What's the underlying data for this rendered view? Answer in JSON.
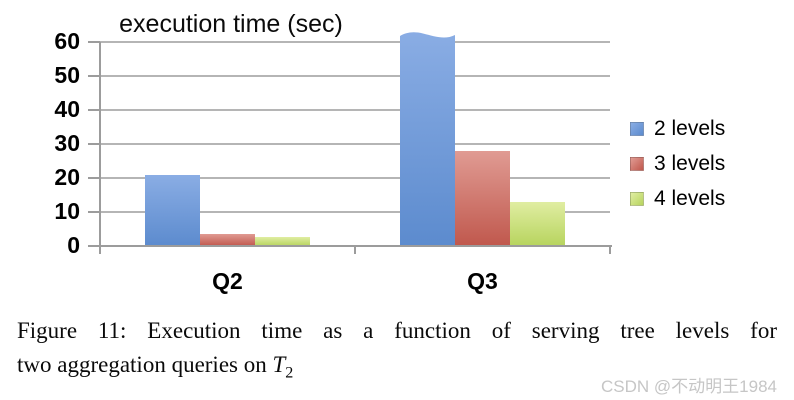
{
  "chart_data": {
    "type": "bar",
    "title": "execution time (sec)",
    "categories": [
      "Q2",
      "Q3"
    ],
    "series": [
      {
        "name": "2 levels",
        "color_top": "#8aade4",
        "color_bottom": "#5c8bce",
        "values": [
          21,
          62
        ]
      },
      {
        "name": "3 levels",
        "color_top": "#e09b93",
        "color_bottom": "#c0584d",
        "values": [
          3.5,
          28
        ]
      },
      {
        "name": "4 levels",
        "color_top": "#e0eda2",
        "color_bottom": "#b7d45e",
        "values": [
          2.5,
          13
        ]
      }
    ],
    "ylim": [
      0,
      60
    ],
    "yticks": [
      0,
      10,
      20,
      30,
      40,
      50,
      60
    ],
    "grid": true,
    "legend_position": "right",
    "truncated_bar": {
      "series_index": 0,
      "category_index": 1
    },
    "colors": {
      "gridline": "#b5b5b5",
      "axis": "#9c9c9c"
    }
  },
  "caption": {
    "line1": "Figure 11:  Execution time as a function of serving tree levels for",
    "line2": "two aggregation queries on ",
    "math_var": "T",
    "math_sub": "2"
  },
  "watermark": "CSDN @不动明王1984"
}
